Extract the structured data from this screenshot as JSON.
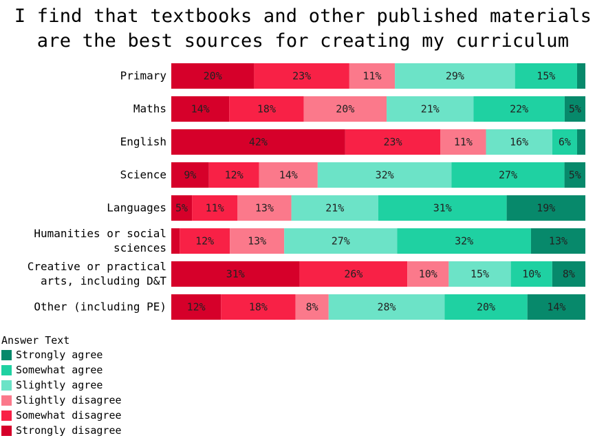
{
  "chart_data": {
    "type": "bar",
    "orientation": "horizontal",
    "stacked": "percent",
    "title_lines": [
      "I find that textbooks and other published materials",
      "are the best sources for creating my curriculum"
    ],
    "categories": [
      "Primary",
      "Maths",
      "English",
      "Science",
      "Languages",
      "Humanities or social sciences",
      "Creative or practical arts, including D&T",
      "Other (including PE)"
    ],
    "category_label_lines": [
      [
        "Primary"
      ],
      [
        "Maths"
      ],
      [
        "English"
      ],
      [
        "Science"
      ],
      [
        "Languages"
      ],
      [
        "Humanities or social",
        "sciences"
      ],
      [
        "Creative or practical",
        "arts, including D&T"
      ],
      [
        "Other (including PE)"
      ]
    ],
    "series": [
      {
        "name": "Strongly disagree",
        "color": "#d6002a",
        "values": [
          20,
          14,
          42,
          9,
          5,
          2,
          31,
          12
        ]
      },
      {
        "name": "Somewhat disagree",
        "color": "#f82146",
        "values": [
          23,
          18,
          23,
          12,
          11,
          12,
          26,
          18
        ]
      },
      {
        "name": "Slightly disagree",
        "color": "#fb798b",
        "values": [
          11,
          20,
          11,
          14,
          13,
          13,
          10,
          8
        ]
      },
      {
        "name": "Slightly agree",
        "color": "#6ce3c7",
        "values": [
          29,
          21,
          16,
          32,
          21,
          27,
          15,
          28
        ]
      },
      {
        "name": "Somewhat agree",
        "color": "#1fd1a2",
        "values": [
          15,
          22,
          6,
          27,
          31,
          32,
          10,
          20
        ]
      },
      {
        "name": "Strongly agree",
        "color": "#07896b",
        "values": [
          2,
          5,
          2,
          5,
          19,
          13,
          8,
          14
        ]
      }
    ],
    "data_labels": [
      [
        "20%",
        "23%",
        "11%",
        "29%",
        "15%",
        ""
      ],
      [
        "14%",
        "18%",
        "20%",
        "21%",
        "22%",
        "5%"
      ],
      [
        "42%",
        "23%",
        "11%",
        "16%",
        "6%",
        ""
      ],
      [
        "9%",
        "12%",
        "14%",
        "32%",
        "27%",
        "5%"
      ],
      [
        "5%",
        "11%",
        "13%",
        "21%",
        "31%",
        "19%"
      ],
      [
        "",
        "12%",
        "13%",
        "27%",
        "32%",
        "13%"
      ],
      [
        "31%",
        "26%",
        "10%",
        "15%",
        "10%",
        "8%"
      ],
      [
        "12%",
        "18%",
        "8%",
        "28%",
        "20%",
        "14%"
      ]
    ],
    "xlabel": "",
    "ylabel": "",
    "legend": {
      "title": "Answer Text",
      "position": "bottom-left",
      "order": [
        "Strongly agree",
        "Somewhat agree",
        "Slightly agree",
        "Slightly disagree",
        "Somewhat disagree",
        "Strongly disagree"
      ]
    },
    "grid": false
  }
}
